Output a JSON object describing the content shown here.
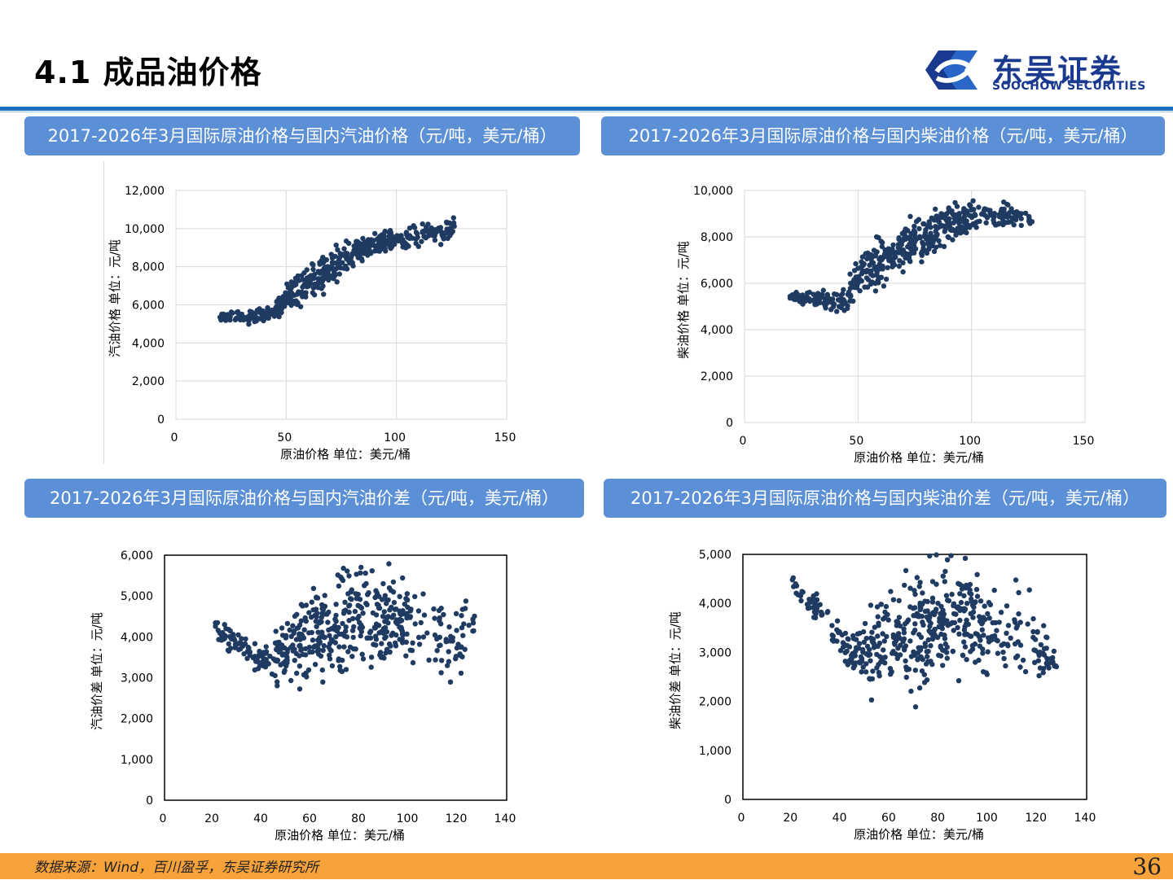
{
  "header": {
    "title": "4.1 成品油价格",
    "logo_cn": "东吴证券",
    "logo_en": "SOOCHOW SECURITIES"
  },
  "colors": {
    "accent": "#1b6fc1",
    "panel": "#5b8fd6",
    "point": "#1f3b62",
    "footer": "#f7a23b",
    "logo": "#1a3a8f"
  },
  "footer": {
    "source": "数据来源：Wind，百川盈孚，东吴证券研究所",
    "page": "36"
  },
  "chart_data": [
    {
      "type": "scatter",
      "title": "2017-2026年3月国际原油价格与国内汽油价格（元/吨，美元/桶）",
      "xlabel": "原油价格 单位：美元/桶",
      "ylabel": "汽油价格  单位：元/吨",
      "xlim": [
        0,
        150
      ],
      "ylim": [
        0,
        12000
      ],
      "xticks": [
        "0",
        "50",
        "100",
        "150"
      ],
      "yticks": [
        "0",
        "2,000",
        "4,000",
        "6,000",
        "8,000",
        "10,000",
        "12,000"
      ],
      "grid": true,
      "trend": [
        [
          20,
          5300
        ],
        [
          25,
          5350
        ],
        [
          30,
          5300
        ],
        [
          35,
          5400
        ],
        [
          40,
          5550
        ],
        [
          45,
          5700
        ],
        [
          50,
          6300
        ],
        [
          55,
          6800
        ],
        [
          60,
          7200
        ],
        [
          65,
          7600
        ],
        [
          70,
          8000
        ],
        [
          75,
          8300
        ],
        [
          80,
          8700
        ],
        [
          85,
          9000
        ],
        [
          90,
          9200
        ],
        [
          95,
          9300
        ],
        [
          100,
          9400
        ],
        [
          105,
          9500
        ],
        [
          110,
          9700
        ],
        [
          115,
          9800
        ],
        [
          120,
          9700
        ],
        [
          127,
          10200
        ]
      ],
      "spread": [
        [
          20,
          100
        ],
        [
          30,
          150
        ],
        [
          45,
          200
        ],
        [
          55,
          500
        ],
        [
          70,
          450
        ],
        [
          85,
          300
        ],
        [
          100,
          250
        ],
        [
          127,
          250
        ]
      ]
    },
    {
      "type": "scatter",
      "title": "2017-2026年3月国际原油价格与国内柴油价格（元/吨，美元/桶）",
      "xlabel": "原油价格 单位：美元/桶",
      "ylabel": "柴油价格  单位：元/吨",
      "xlim": [
        0,
        150
      ],
      "ylim": [
        0,
        10000
      ],
      "xticks": [
        "0",
        "50",
        "100",
        "150"
      ],
      "yticks": [
        "0",
        "2,000",
        "4,000",
        "6,000",
        "8,000",
        "10,000"
      ],
      "grid": true,
      "trend": [
        [
          20,
          5450
        ],
        [
          25,
          5400
        ],
        [
          30,
          5350
        ],
        [
          35,
          5300
        ],
        [
          40,
          5200
        ],
        [
          45,
          5300
        ],
        [
          50,
          6200
        ],
        [
          55,
          6700
        ],
        [
          60,
          7000
        ],
        [
          65,
          7300
        ],
        [
          70,
          7500
        ],
        [
          75,
          7700
        ],
        [
          80,
          8000
        ],
        [
          85,
          8200
        ],
        [
          90,
          8500
        ],
        [
          95,
          8700
        ],
        [
          100,
          8800
        ],
        [
          105,
          8900
        ],
        [
          110,
          8900
        ],
        [
          115,
          8950
        ],
        [
          120,
          8900
        ],
        [
          127,
          8600
        ]
      ],
      "spread": [
        [
          20,
          80
        ],
        [
          40,
          200
        ],
        [
          50,
          400
        ],
        [
          65,
          500
        ],
        [
          80,
          500
        ],
        [
          100,
          350
        ],
        [
          127,
          150
        ]
      ]
    },
    {
      "type": "scatter",
      "title": "2017-2026年3月国际原油价格与国内汽油价差（元/吨，美元/桶）",
      "xlabel": "原油价格 单位：美元/桶",
      "ylabel": "汽油价差 单位：元/吨",
      "xlim": [
        0,
        140
      ],
      "ylim": [
        0,
        6000
      ],
      "xticks": [
        "0",
        "20",
        "40",
        "60",
        "80",
        "100",
        "120",
        "140"
      ],
      "yticks": [
        "0",
        "1,000",
        "2,000",
        "3,000",
        "4,000",
        "5,000",
        "6,000"
      ],
      "grid": false,
      "trend": [
        [
          20,
          4250
        ],
        [
          25,
          4050
        ],
        [
          30,
          3800
        ],
        [
          35,
          3600
        ],
        [
          40,
          3450
        ],
        [
          45,
          3500
        ],
        [
          50,
          3700
        ],
        [
          55,
          3900
        ],
        [
          60,
          4100
        ],
        [
          65,
          4200
        ],
        [
          70,
          4300
        ],
        [
          75,
          4450
        ],
        [
          80,
          4600
        ],
        [
          85,
          4550
        ],
        [
          90,
          4450
        ],
        [
          95,
          4350
        ],
        [
          100,
          4250
        ],
        [
          105,
          4100
        ],
        [
          110,
          4000
        ],
        [
          115,
          3950
        ],
        [
          120,
          3800
        ],
        [
          127,
          4300
        ]
      ],
      "spread": [
        [
          20,
          150
        ],
        [
          40,
          150
        ],
        [
          55,
          450
        ],
        [
          70,
          650
        ],
        [
          85,
          600
        ],
        [
          100,
          500
        ],
        [
          120,
          450
        ],
        [
          127,
          200
        ]
      ]
    },
    {
      "type": "scatter",
      "title": "2017-2026年3月国际原油价格与国内柴油价差（元/吨，美元/桶）",
      "xlabel": "原油价格 单位：美元/桶",
      "ylabel": "柴油价差 单位：元/吨",
      "xlim": [
        0,
        140
      ],
      "ylim": [
        0,
        5000
      ],
      "xticks": [
        "0",
        "20",
        "40",
        "60",
        "80",
        "100",
        "120",
        "140"
      ],
      "yticks": [
        "0",
        "1,000",
        "2,000",
        "3,000",
        "4,000",
        "5,000"
      ],
      "grid": false,
      "trend": [
        [
          20,
          4400
        ],
        [
          25,
          4150
        ],
        [
          30,
          3900
        ],
        [
          35,
          3600
        ],
        [
          40,
          3250
        ],
        [
          45,
          3000
        ],
        [
          50,
          3000
        ],
        [
          55,
          3200
        ],
        [
          60,
          3400
        ],
        [
          65,
          3500
        ],
        [
          70,
          3500
        ],
        [
          75,
          3550
        ],
        [
          80,
          3600
        ],
        [
          85,
          3700
        ],
        [
          90,
          3700
        ],
        [
          95,
          3650
        ],
        [
          100,
          3550
        ],
        [
          105,
          3500
        ],
        [
          110,
          3400
        ],
        [
          115,
          3300
        ],
        [
          120,
          3150
        ],
        [
          128,
          2800
        ]
      ],
      "spread": [
        [
          20,
          100
        ],
        [
          40,
          200
        ],
        [
          55,
          450
        ],
        [
          70,
          600
        ],
        [
          85,
          600
        ],
        [
          100,
          500
        ],
        [
          120,
          350
        ],
        [
          128,
          100
        ]
      ]
    }
  ]
}
